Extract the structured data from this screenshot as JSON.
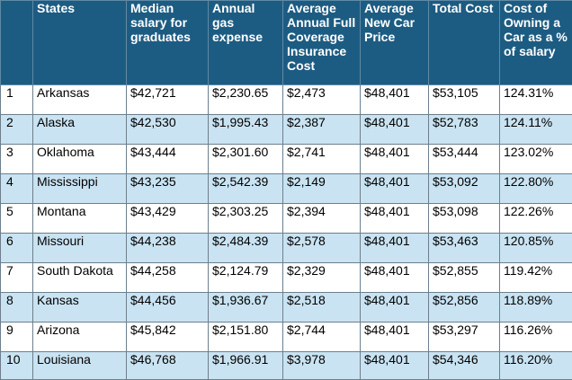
{
  "table": {
    "headers": [
      "",
      "States",
      "Median salary for graduates",
      "Annual gas expense",
      "Average Annual Full Coverage Insurance Cost",
      "Average New Car Price",
      "Total Cost",
      "Cost of Owning a Car as a % of salary"
    ],
    "rows": [
      [
        "1",
        "Arkansas",
        "$42,721",
        "$2,230.65",
        "$2,473",
        "$48,401",
        "$53,105",
        "124.31%"
      ],
      [
        "2",
        "Alaska",
        "$42,530",
        "$1,995.43",
        "$2,387",
        "$48,401",
        "$52,783",
        "124.11%"
      ],
      [
        "3",
        "Oklahoma",
        "$43,444",
        "$2,301.60",
        "$2,741",
        "$48,401",
        "$53,444",
        "123.02%"
      ],
      [
        "4",
        "Mississippi",
        "$43,235",
        "$2,542.39",
        "$2,149",
        "$48,401",
        "$53,092",
        "122.80%"
      ],
      [
        "5",
        "Montana",
        "$43,429",
        "$2,303.25",
        "$2,394",
        "$48,401",
        "$53,098",
        "122.26%"
      ],
      [
        "6",
        "Missouri",
        "$44,238",
        "$2,484.39",
        "$2,578",
        "$48,401",
        "$53,463",
        "120.85%"
      ],
      [
        "7",
        "South Dakota",
        "$44,258",
        "$2,124.79",
        "$2,329",
        "$48,401",
        "$52,855",
        "119.42%"
      ],
      [
        "8",
        "Kansas",
        "$44,456",
        "$1,936.67",
        "$2,518",
        "$48,401",
        "$52,856",
        "118.89%"
      ],
      [
        "9",
        "Arizona",
        "$45,842",
        "$2,151.80",
        "$2,744",
        "$48,401",
        "$53,297",
        "116.26%"
      ],
      [
        "10",
        "Louisiana",
        "$46,768",
        "$1,966.91",
        "$3,978",
        "$48,401",
        "$54,346",
        "116.20%"
      ]
    ]
  }
}
